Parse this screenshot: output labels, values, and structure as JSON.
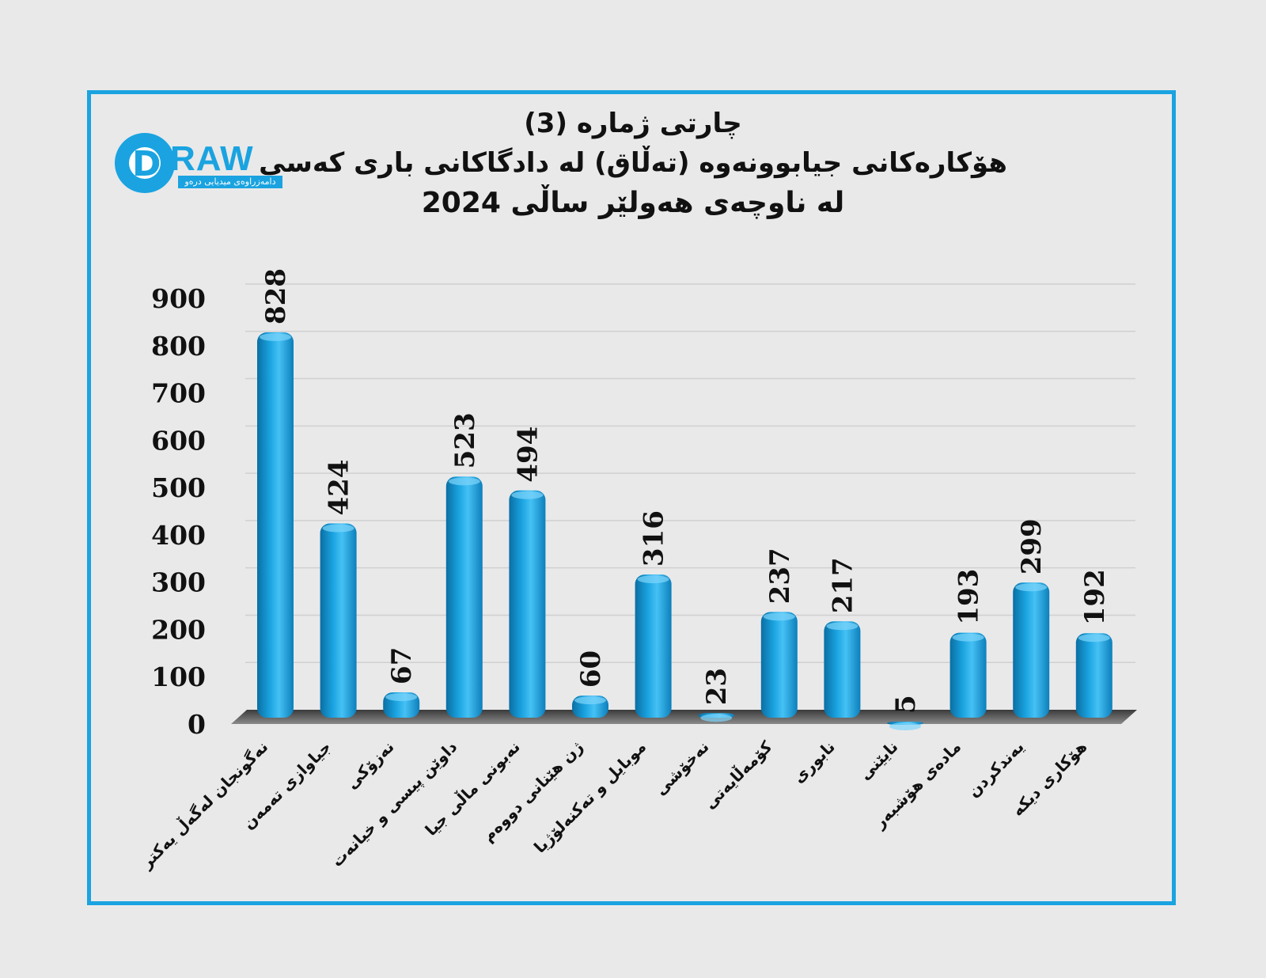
{
  "header": {
    "title_line1": "چارتی ژماره (3)",
    "title_line2": "هۆکارەکانی جیابوونەوە (تەڵاق) لە دادگاکانی باری کەسی",
    "title_line3": "لە ناوچەی هەولێر ساڵی 2024"
  },
  "logo": {
    "word": "RAW",
    "letter": "D",
    "tagline": "دامەزراوەی میدیایی درەو"
  },
  "colors": {
    "bar": "#1aa3e0",
    "frame": "#1aa3e0",
    "floor": "#555555"
  },
  "chart_data": {
    "type": "bar",
    "categories": [
      "نەگونجان لەگەڵ یەکتر",
      "جیاوازی تەمەن",
      "نەزۆکی",
      "داوێن پیسی و خیانەت",
      "نەبونی ماڵی جیا",
      "ژن هێنانی دووەم",
      "موبایل و تەکنەلۆژیا",
      "نەخۆشی",
      "کۆمەڵایەتی",
      "نابوری",
      "نایێنی",
      "مادەی هۆشبەر",
      "یەندکردن",
      "هۆکاری دیکە"
    ],
    "values": [
      828,
      424,
      67,
      523,
      494,
      60,
      316,
      23,
      237,
      217,
      5,
      193,
      299,
      192
    ],
    "ylim": [
      0,
      900
    ],
    "yticks": [
      0,
      100,
      200,
      300,
      400,
      500,
      600,
      700,
      800,
      900
    ],
    "grid": true,
    "legend": "none"
  }
}
